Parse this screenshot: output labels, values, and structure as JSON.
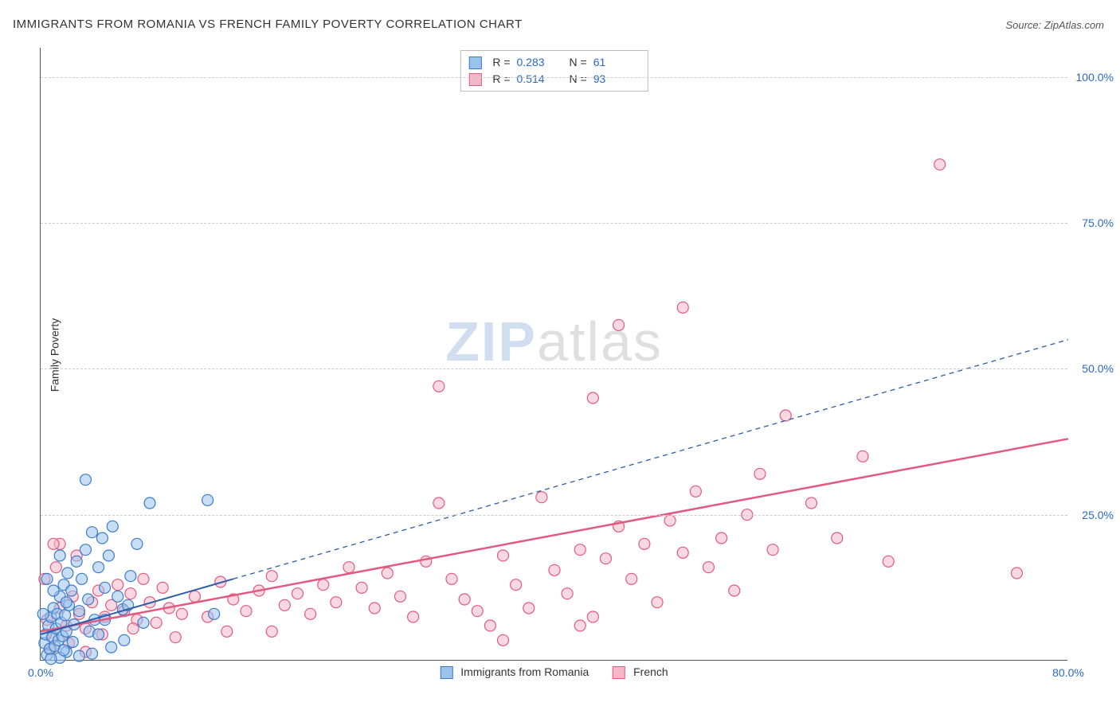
{
  "title": "IMMIGRANTS FROM ROMANIA VS FRENCH FAMILY POVERTY CORRELATION CHART",
  "source": "Source: ZipAtlas.com",
  "y_axis_title": "Family Poverty",
  "watermark_zip": "ZIP",
  "watermark_atlas": "atlas",
  "chart": {
    "type": "scatter",
    "xlim": [
      0,
      80
    ],
    "ylim": [
      0,
      105
    ],
    "x_ticks": [
      0,
      80
    ],
    "x_tick_labels": [
      "0.0%",
      "80.0%"
    ],
    "y_ticks": [
      25,
      50,
      75,
      100
    ],
    "y_tick_labels": [
      "25.0%",
      "50.0%",
      "75.0%",
      "100.0%"
    ],
    "background_color": "#ffffff",
    "grid_color": "#cccccc",
    "axis_color": "#555555",
    "tick_label_color": "#2b69c6",
    "marker_radius": 7,
    "marker_stroke_width": 1.2,
    "series": [
      {
        "name": "Immigrants from Romania",
        "fill_color": "#9ac3ec",
        "stroke_color": "#3b7bc9",
        "fill_opacity": 0.55,
        "r_value": "0.283",
        "n_value": "61",
        "trend_line": {
          "x1": 0,
          "y1": 4.5,
          "x2": 15,
          "y2": 14,
          "extrap_x2": 80,
          "extrap_y2": 55,
          "color": "#2b5da8",
          "width": 2
        },
        "points": [
          [
            0.3,
            3
          ],
          [
            0.4,
            4.5
          ],
          [
            0.5,
            1
          ],
          [
            0.6,
            6
          ],
          [
            0.7,
            2
          ],
          [
            0.8,
            7.5
          ],
          [
            0.9,
            4
          ],
          [
            1.0,
            9
          ],
          [
            1.1,
            2.5
          ],
          [
            1.2,
            5.5
          ],
          [
            1.3,
            8
          ],
          [
            1.4,
            3.5
          ],
          [
            1.5,
            11
          ],
          [
            1.6,
            6.5
          ],
          [
            1.7,
            4.2
          ],
          [
            1.8,
            13
          ],
          [
            1.9,
            7.8
          ],
          [
            2.0,
            5
          ],
          [
            2.1,
            15
          ],
          [
            2.2,
            9.5
          ],
          [
            2.4,
            12
          ],
          [
            2.6,
            6.2
          ],
          [
            2.8,
            17
          ],
          [
            3.0,
            8.5
          ],
          [
            3.2,
            14
          ],
          [
            3.5,
            19
          ],
          [
            3.7,
            10.5
          ],
          [
            4.0,
            22
          ],
          [
            4.2,
            7
          ],
          [
            4.5,
            16
          ],
          [
            4.8,
            21
          ],
          [
            5.0,
            12.5
          ],
          [
            5.3,
            18
          ],
          [
            5.6,
            23
          ],
          [
            6.0,
            11
          ],
          [
            6.4,
            8.8
          ],
          [
            7.0,
            14.5
          ],
          [
            7.5,
            20
          ],
          [
            8.0,
            6.5
          ],
          [
            2.0,
            1.5
          ],
          [
            1.5,
            0.5
          ],
          [
            3.0,
            0.8
          ],
          [
            4.0,
            1.2
          ],
          [
            5.5,
            2.3
          ],
          [
            6.5,
            3.5
          ],
          [
            1.0,
            12
          ],
          [
            1.5,
            18
          ],
          [
            2.0,
            10
          ],
          [
            0.2,
            8
          ],
          [
            0.5,
            14
          ],
          [
            3.5,
            31
          ],
          [
            8.5,
            27
          ],
          [
            13,
            27.5
          ],
          [
            13.5,
            8
          ],
          [
            0.8,
            0.3
          ],
          [
            1.8,
            1.8
          ],
          [
            2.5,
            3.2
          ],
          [
            3.8,
            5
          ],
          [
            4.5,
            4.5
          ],
          [
            5.0,
            7
          ],
          [
            6.8,
            9.5
          ]
        ]
      },
      {
        "name": "French",
        "fill_color": "#f5b8c9",
        "stroke_color": "#e05a82",
        "fill_opacity": 0.55,
        "r_value": "0.514",
        "n_value": "93",
        "trend_line": {
          "x1": 0,
          "y1": 5,
          "x2": 80,
          "y2": 38,
          "color": "#e05a82",
          "width": 2.5
        },
        "points": [
          [
            0.5,
            7
          ],
          [
            1.0,
            4
          ],
          [
            1.5,
            9
          ],
          [
            2.0,
            6
          ],
          [
            2.5,
            11
          ],
          [
            3.0,
            8
          ],
          [
            3.5,
            5.5
          ],
          [
            4.0,
            10
          ],
          [
            4.5,
            12
          ],
          [
            5.0,
            7.5
          ],
          [
            5.5,
            9.5
          ],
          [
            6.0,
            13
          ],
          [
            6.5,
            8.5
          ],
          [
            7.0,
            11.5
          ],
          [
            7.5,
            7
          ],
          [
            8.0,
            14
          ],
          [
            8.5,
            10
          ],
          [
            9.0,
            6.5
          ],
          [
            9.5,
            12.5
          ],
          [
            10,
            9
          ],
          [
            11,
            8
          ],
          [
            12,
            11
          ],
          [
            13,
            7.5
          ],
          [
            14,
            13.5
          ],
          [
            15,
            10.5
          ],
          [
            16,
            8.5
          ],
          [
            17,
            12
          ],
          [
            18,
            14.5
          ],
          [
            19,
            9.5
          ],
          [
            20,
            11.5
          ],
          [
            21,
            8
          ],
          [
            22,
            13
          ],
          [
            23,
            10
          ],
          [
            24,
            16
          ],
          [
            25,
            12.5
          ],
          [
            26,
            9
          ],
          [
            27,
            15
          ],
          [
            28,
            11
          ],
          [
            29,
            7.5
          ],
          [
            30,
            17
          ],
          [
            31,
            27
          ],
          [
            32,
            14
          ],
          [
            33,
            10.5
          ],
          [
            34,
            8.5
          ],
          [
            35,
            6
          ],
          [
            36,
            18
          ],
          [
            37,
            13
          ],
          [
            38,
            9
          ],
          [
            39,
            28
          ],
          [
            40,
            15.5
          ],
          [
            41,
            11.5
          ],
          [
            42,
            19
          ],
          [
            43,
            7.5
          ],
          [
            44,
            17.5
          ],
          [
            45,
            23
          ],
          [
            46,
            14
          ],
          [
            47,
            20
          ],
          [
            48,
            10
          ],
          [
            49,
            24
          ],
          [
            50,
            18.5
          ],
          [
            51,
            29
          ],
          [
            52,
            16
          ],
          [
            53,
            21
          ],
          [
            54,
            12
          ],
          [
            55,
            25
          ],
          [
            56,
            32
          ],
          [
            57,
            19
          ],
          [
            58,
            42
          ],
          [
            60,
            27
          ],
          [
            62,
            21
          ],
          [
            64,
            35
          ],
          [
            66,
            17
          ],
          [
            76,
            15
          ],
          [
            0.8,
            2
          ],
          [
            2.2,
            3
          ],
          [
            4.8,
            4.5
          ],
          [
            7.2,
            5.5
          ],
          [
            10.5,
            4
          ],
          [
            14.5,
            5
          ],
          [
            43,
            45
          ],
          [
            31,
            47
          ],
          [
            50,
            60.5
          ],
          [
            45,
            57.5
          ],
          [
            1.5,
            20
          ],
          [
            2.8,
            18
          ],
          [
            0.3,
            14
          ],
          [
            1.2,
            16
          ],
          [
            3.5,
            1.5
          ],
          [
            18,
            5
          ],
          [
            36,
            3.5
          ],
          [
            42,
            6
          ],
          [
            70,
            85
          ],
          [
            1.0,
            20
          ]
        ]
      }
    ]
  },
  "legend_labels": {
    "romania": "Immigrants from Romania",
    "french": "French",
    "r_label": "R =",
    "n_label": "N ="
  }
}
